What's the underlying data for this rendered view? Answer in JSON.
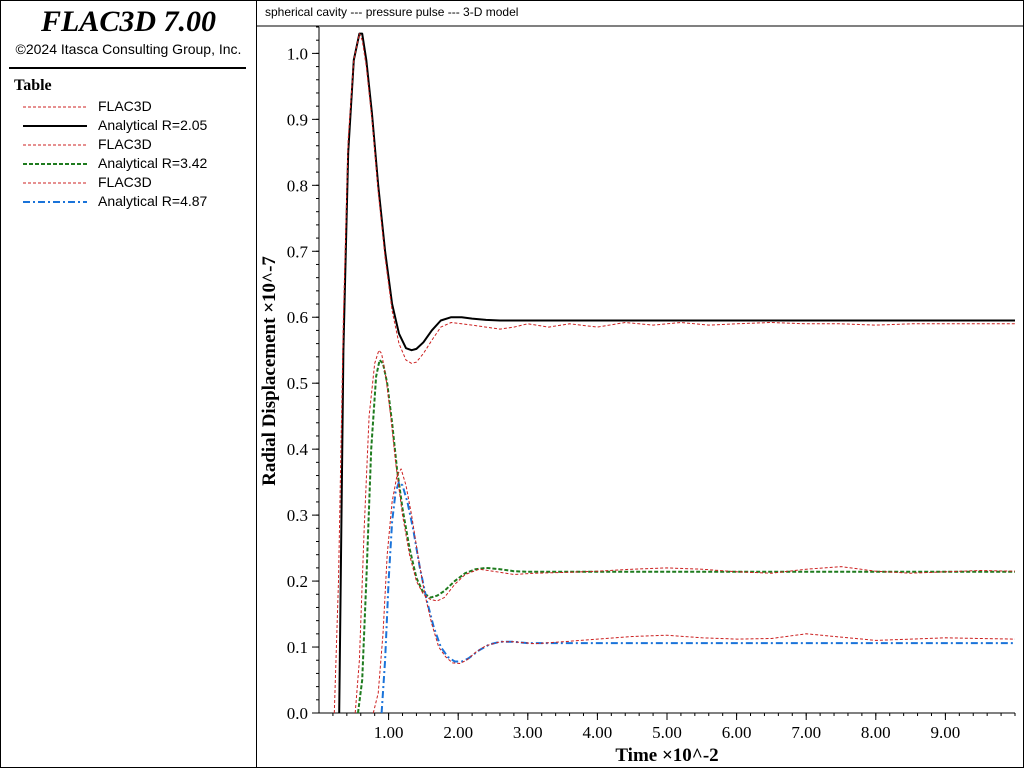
{
  "app": {
    "title": "FLAC3D 7.00",
    "copyright": "©2024 Itasca Consulting Group, Inc."
  },
  "legend": {
    "title": "Table",
    "items": [
      {
        "label": "FLAC3D",
        "color": "#cc2020",
        "style": "dashed-thin"
      },
      {
        "label": "Analytical R=2.05",
        "color": "#000000",
        "style": "solid"
      },
      {
        "label": "FLAC3D",
        "color": "#cc2020",
        "style": "dashed-thin"
      },
      {
        "label": "Analytical R=3.42",
        "color": "#1e7b1e",
        "style": "dashed"
      },
      {
        "label": "FLAC3D",
        "color": "#cc2020",
        "style": "dashed-thin"
      },
      {
        "label": "Analytical R=4.87",
        "color": "#1a73d9",
        "style": "dashdot"
      }
    ]
  },
  "chart_data": {
    "type": "line",
    "title": "spherical cavity --- pressure pulse --- 3-D model",
    "xlabel": "Time ×10^-2",
    "ylabel": "Radial Displacement ×10^-7",
    "xlim": [
      0,
      10.0
    ],
    "ylim": [
      0,
      1.04
    ],
    "x_ticks": [
      1,
      2,
      3,
      4,
      5,
      6,
      7,
      8,
      9
    ],
    "x_tick_labels": [
      "1.00",
      "2.00",
      "3.00",
      "4.00",
      "5.00",
      "6.00",
      "7.00",
      "8.00",
      "9.00"
    ],
    "y_ticks": [
      0,
      0.1,
      0.2,
      0.3,
      0.4,
      0.5,
      0.6,
      0.7,
      0.8,
      0.9,
      1.0
    ],
    "y_tick_labels": [
      "0.0",
      "0.1",
      "0.2",
      "0.3",
      "0.4",
      "0.5",
      "0.6",
      "0.7",
      "0.8",
      "0.9",
      "1.0"
    ],
    "grid": false,
    "series": [
      {
        "name": "Analytical R=2.05",
        "color": "#000000",
        "style": "solid",
        "x": [
          0.29,
          0.35,
          0.42,
          0.5,
          0.58,
          0.62,
          0.68,
          0.76,
          0.85,
          0.95,
          1.05,
          1.15,
          1.25,
          1.33,
          1.4,
          1.5,
          1.62,
          1.75,
          1.9,
          2.05,
          2.2,
          2.4,
          2.6,
          2.8,
          3.2,
          4,
          5,
          6,
          7,
          8,
          9,
          10
        ],
        "y": [
          0.0,
          0.55,
          0.85,
          0.99,
          1.03,
          1.03,
          0.99,
          0.91,
          0.8,
          0.7,
          0.62,
          0.575,
          0.553,
          0.55,
          0.552,
          0.562,
          0.58,
          0.595,
          0.6,
          0.6,
          0.598,
          0.596,
          0.595,
          0.595,
          0.595,
          0.595,
          0.595,
          0.595,
          0.595,
          0.595,
          0.595,
          0.595
        ]
      },
      {
        "name": "FLAC3D",
        "color": "#cc2020",
        "style": "dashed-thin",
        "x": [
          0.22,
          0.28,
          0.35,
          0.42,
          0.5,
          0.58,
          0.62,
          0.68,
          0.76,
          0.85,
          0.95,
          1.05,
          1.15,
          1.25,
          1.33,
          1.4,
          1.5,
          1.62,
          1.75,
          1.9,
          2.05,
          2.2,
          2.4,
          2.6,
          2.8,
          3.0,
          3.3,
          3.6,
          4.0,
          4.4,
          4.8,
          5.2,
          5.6,
          6.0,
          6.5,
          7.0,
          7.5,
          8.0,
          8.5,
          9.0,
          9.5,
          10
        ],
        "y": [
          0.0,
          0.2,
          0.6,
          0.87,
          0.99,
          1.03,
          1.02,
          0.98,
          0.9,
          0.79,
          0.69,
          0.61,
          0.56,
          0.535,
          0.53,
          0.532,
          0.545,
          0.565,
          0.585,
          0.592,
          0.59,
          0.588,
          0.585,
          0.582,
          0.585,
          0.59,
          0.585,
          0.59,
          0.585,
          0.592,
          0.588,
          0.592,
          0.588,
          0.59,
          0.592,
          0.59,
          0.59,
          0.588,
          0.59,
          0.59,
          0.59,
          0.59
        ]
      },
      {
        "name": "Analytical R=3.42",
        "color": "#1e7b1e",
        "style": "dashed",
        "x": [
          0.56,
          0.62,
          0.68,
          0.75,
          0.82,
          0.87,
          0.92,
          0.98,
          1.05,
          1.12,
          1.2,
          1.3,
          1.4,
          1.5,
          1.6,
          1.7,
          1.8,
          1.95,
          2.1,
          2.25,
          2.4,
          2.6,
          2.8,
          3.0,
          3.5,
          4,
          5,
          6,
          7,
          8,
          9,
          10
        ],
        "y": [
          0.0,
          0.05,
          0.2,
          0.4,
          0.51,
          0.535,
          0.53,
          0.5,
          0.44,
          0.37,
          0.31,
          0.25,
          0.205,
          0.182,
          0.175,
          0.178,
          0.185,
          0.2,
          0.212,
          0.218,
          0.22,
          0.218,
          0.215,
          0.214,
          0.214,
          0.214,
          0.214,
          0.214,
          0.214,
          0.214,
          0.214,
          0.214
        ]
      },
      {
        "name": "FLAC3D",
        "color": "#cc2020",
        "style": "dashed-thin",
        "x": [
          0.52,
          0.58,
          0.65,
          0.72,
          0.8,
          0.86,
          0.9,
          0.96,
          1.03,
          1.1,
          1.2,
          1.3,
          1.4,
          1.5,
          1.6,
          1.7,
          1.8,
          1.95,
          2.1,
          2.3,
          2.5,
          2.8,
          3.1,
          3.5,
          4,
          4.5,
          5,
          5.5,
          6,
          6.5,
          7,
          7.5,
          8,
          8.5,
          9,
          9.5,
          10
        ],
        "y": [
          0.0,
          0.08,
          0.28,
          0.45,
          0.53,
          0.55,
          0.545,
          0.51,
          0.45,
          0.38,
          0.3,
          0.24,
          0.2,
          0.18,
          0.172,
          0.17,
          0.175,
          0.195,
          0.21,
          0.218,
          0.215,
          0.21,
          0.212,
          0.213,
          0.215,
          0.218,
          0.22,
          0.218,
          0.214,
          0.212,
          0.218,
          0.222,
          0.215,
          0.212,
          0.214,
          0.216,
          0.215
        ]
      },
      {
        "name": "Analytical R=4.87",
        "color": "#1a73d9",
        "style": "dashdot",
        "x": [
          0.9,
          0.95,
          1.0,
          1.05,
          1.1,
          1.15,
          1.2,
          1.27,
          1.35,
          1.45,
          1.55,
          1.65,
          1.75,
          1.85,
          1.95,
          2.05,
          2.15,
          2.3,
          2.45,
          2.6,
          2.8,
          3.0,
          3.5,
          4,
          5,
          6,
          7,
          8,
          9,
          10
        ],
        "y": [
          0.0,
          0.08,
          0.2,
          0.29,
          0.335,
          0.35,
          0.345,
          0.32,
          0.28,
          0.22,
          0.17,
          0.13,
          0.1,
          0.085,
          0.078,
          0.078,
          0.083,
          0.095,
          0.104,
          0.108,
          0.108,
          0.106,
          0.106,
          0.106,
          0.106,
          0.106,
          0.106,
          0.106,
          0.106,
          0.106
        ]
      },
      {
        "name": "FLAC3D",
        "color": "#cc2020",
        "style": "dashed-thin",
        "x": [
          0.78,
          0.85,
          0.92,
          0.98,
          1.05,
          1.12,
          1.18,
          1.25,
          1.33,
          1.42,
          1.52,
          1.62,
          1.72,
          1.82,
          1.92,
          2.02,
          2.12,
          2.25,
          2.4,
          2.6,
          2.8,
          3.1,
          3.5,
          4,
          4.5,
          5,
          5.5,
          6,
          6.5,
          7,
          7.5,
          8,
          8.5,
          9,
          9.5,
          10
        ],
        "y": [
          0.0,
          0.03,
          0.12,
          0.24,
          0.32,
          0.36,
          0.37,
          0.345,
          0.3,
          0.24,
          0.18,
          0.135,
          0.1,
          0.085,
          0.076,
          0.075,
          0.08,
          0.092,
          0.102,
          0.108,
          0.108,
          0.105,
          0.108,
          0.112,
          0.116,
          0.118,
          0.114,
          0.112,
          0.113,
          0.12,
          0.115,
          0.11,
          0.112,
          0.114,
          0.113,
          0.112
        ]
      }
    ]
  }
}
